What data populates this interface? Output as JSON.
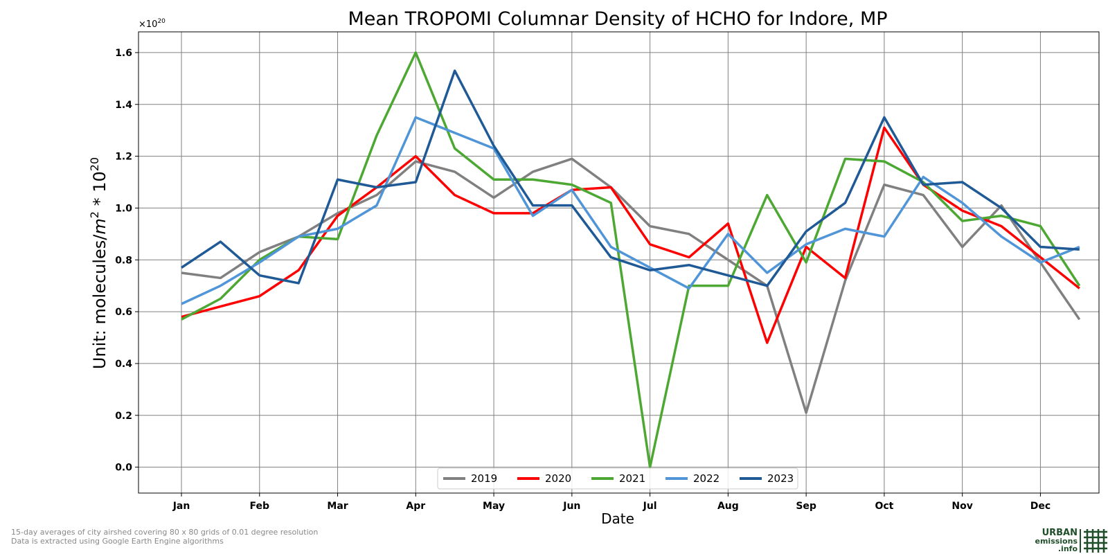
{
  "chart_data": {
    "type": "line",
    "title": "Mean TROPOMI Columnar Density of HCHO for Indore, MP",
    "xlabel": "Date",
    "ylabel_text": "Unit: molecules/",
    "ylabel_unit": "m",
    "ylabel_exp": "2",
    "ylabel_mult": " * 10",
    "ylabel_mult_exp": "20",
    "offset_base": "×10",
    "offset_exp": "20",
    "ylim": [
      -0.1,
      1.68
    ],
    "xlim": [
      -1.1,
      23.5
    ],
    "ytick_values": [
      0.0,
      0.2,
      0.4,
      0.6,
      0.8,
      1.0,
      1.2,
      1.4,
      1.6
    ],
    "yticks": [
      "0.0",
      "0.2",
      "0.4",
      "0.6",
      "0.8",
      "1.0",
      "1.2",
      "1.4",
      "1.6"
    ],
    "months": [
      "Jan",
      "Feb",
      "Mar",
      "Apr",
      "May",
      "Jun",
      "Jul",
      "Aug",
      "Sep",
      "Oct",
      "Nov",
      "Dec"
    ],
    "grid": true,
    "legend_position": "bottom-center",
    "series": [
      {
        "name": "2019",
        "color": "#808080",
        "values": [
          0.75,
          0.73,
          0.83,
          0.89,
          0.98,
          1.05,
          1.18,
          1.14,
          1.04,
          1.14,
          1.19,
          1.08,
          0.93,
          0.9,
          0.8,
          0.7,
          0.21,
          0.72,
          1.09,
          1.05,
          0.85,
          1.01,
          0.79,
          0.57
        ]
      },
      {
        "name": "2020",
        "color": "#ff0000",
        "values": [
          0.58,
          0.62,
          0.66,
          0.76,
          0.97,
          1.08,
          1.2,
          1.05,
          0.98,
          0.98,
          1.07,
          1.08,
          0.86,
          0.81,
          0.94,
          0.48,
          0.85,
          0.73,
          1.31,
          1.09,
          0.99,
          0.93,
          0.81,
          0.69
        ]
      },
      {
        "name": "2021",
        "color": "#4ca832",
        "values": [
          0.57,
          0.65,
          0.8,
          0.89,
          0.88,
          1.28,
          1.6,
          1.23,
          1.11,
          1.11,
          1.09,
          1.02,
          0.0,
          0.7,
          0.7,
          1.05,
          0.79,
          1.19,
          1.18,
          1.1,
          0.95,
          0.97,
          0.93,
          0.7
        ]
      },
      {
        "name": "2022",
        "color": "#4f95d8",
        "values": [
          0.63,
          0.7,
          0.79,
          0.89,
          0.92,
          1.01,
          1.35,
          1.29,
          1.23,
          0.97,
          1.07,
          0.85,
          0.77,
          0.69,
          0.9,
          0.75,
          0.86,
          0.92,
          0.89,
          1.12,
          1.02,
          0.89,
          0.79,
          0.85
        ]
      },
      {
        "name": "2023",
        "color": "#1f5a96",
        "values": [
          0.77,
          0.87,
          0.74,
          0.71,
          1.11,
          1.08,
          1.1,
          1.53,
          1.24,
          1.01,
          1.01,
          0.81,
          0.76,
          0.78,
          0.74,
          0.7,
          0.91,
          1.02,
          1.35,
          1.09,
          1.1,
          1.0,
          0.85,
          0.84
        ]
      }
    ]
  },
  "footnote": {
    "line1": "15-day averages of city airshed covering 80 x 80 grids of 0.01 degree resolution",
    "line2": "Data is extracted using Google Earth Engine algorithms"
  },
  "logo": {
    "line1": "URBAN",
    "line2": "emissions",
    "line3": ".info",
    "color": "#1f4f2a"
  }
}
